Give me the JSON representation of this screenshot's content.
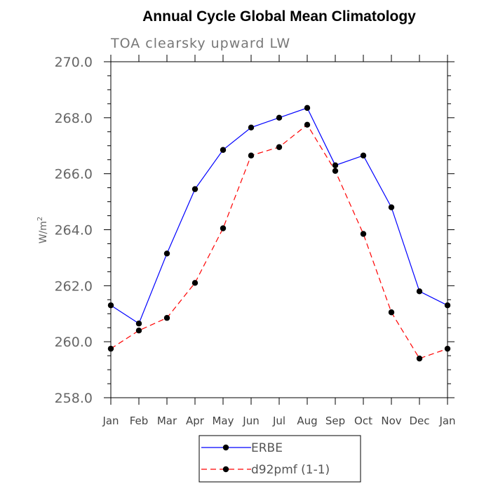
{
  "chart_data": {
    "type": "line",
    "title": "Annual Cycle Global Mean Climatology",
    "subtitle": "TOA clearsky upward LW",
    "xlabel": "",
    "ylabel": "W/m",
    "ylabel_sup": "2",
    "categories": [
      "Jan",
      "Feb",
      "Mar",
      "Apr",
      "May",
      "Jun",
      "Jul",
      "Aug",
      "Sep",
      "Oct",
      "Nov",
      "Dec",
      "Jan"
    ],
    "ylim": [
      258.0,
      270.0
    ],
    "yticks": [
      258.0,
      260.0,
      262.0,
      264.0,
      266.0,
      268.0,
      270.0
    ],
    "ytick_labels": [
      "258.0",
      "260.0",
      "262.0",
      "264.0",
      "266.0",
      "268.0",
      "270.0"
    ],
    "grid": false,
    "legend_position": "bottom",
    "series": [
      {
        "name": "ERBE",
        "color": "#0000ff",
        "line_style": "solid",
        "marker": "filled-circle",
        "values": [
          261.3,
          260.65,
          263.15,
          265.45,
          266.85,
          267.65,
          268.0,
          268.35,
          266.3,
          266.65,
          264.8,
          261.8,
          261.3
        ]
      },
      {
        "name": "d92pmf (1-1)",
        "color": "#ff0000",
        "line_style": "dashed",
        "marker": "filled-circle",
        "values": [
          259.75,
          260.4,
          260.85,
          262.1,
          264.05,
          266.65,
          266.95,
          267.75,
          266.1,
          263.85,
          261.05,
          259.4,
          259.75
        ]
      }
    ]
  }
}
